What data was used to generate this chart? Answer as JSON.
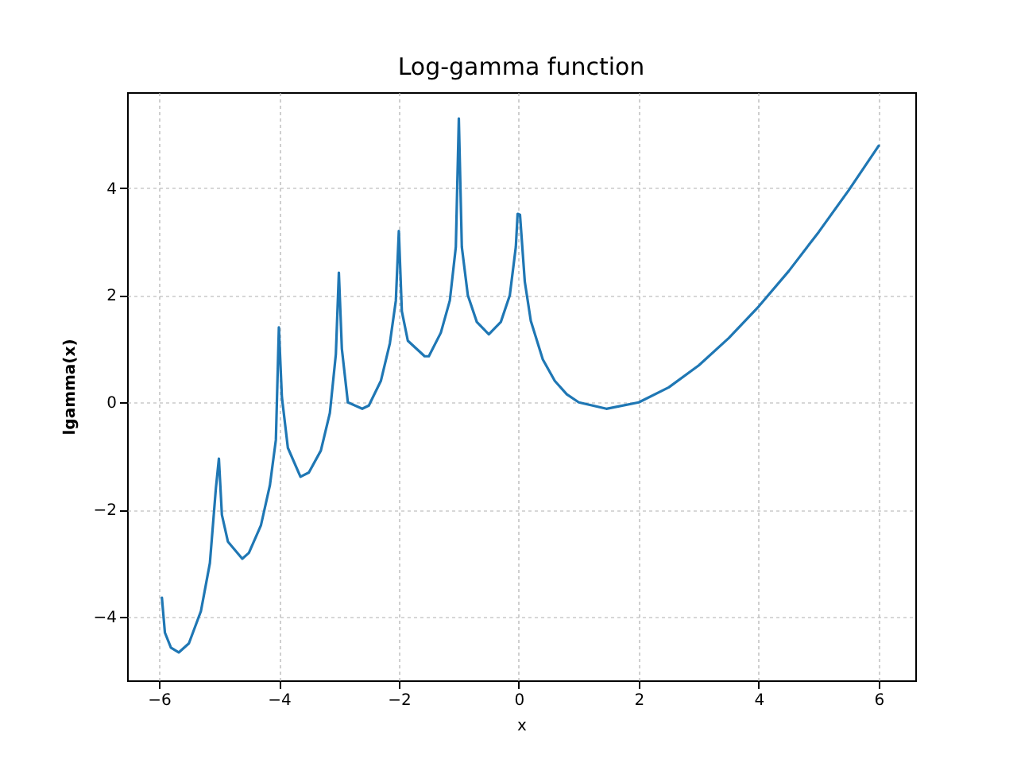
{
  "chart_data": {
    "type": "line",
    "title": "Log-gamma function",
    "xlabel": "x",
    "ylabel": "lgamma(x)",
    "xlim": [
      -6.53,
      6.61
    ],
    "ylim": [
      -5.19,
      5.79
    ],
    "xticks": [
      -6,
      -4,
      -2,
      0,
      2,
      4,
      6
    ],
    "yticks": [
      -4,
      -2,
      0,
      2,
      4
    ],
    "grid": true,
    "line_style": "solid",
    "marker": "none",
    "series": [
      {
        "color": "#1f77b4",
        "x": [
          -5.95,
          -5.9,
          -5.8,
          -5.67,
          -5.5,
          -5.3,
          -5.15,
          -5.05,
          -5.0,
          -4.95,
          -4.85,
          -4.61,
          -4.5,
          -4.3,
          -4.15,
          -4.05,
          -4.0,
          -3.95,
          -3.85,
          -3.64,
          -3.5,
          -3.3,
          -3.15,
          -3.05,
          -3.0,
          -2.95,
          -2.85,
          -2.61,
          -2.5,
          -2.3,
          -2.15,
          -2.05,
          -2.0,
          -1.95,
          -1.85,
          -1.57,
          -1.5,
          -1.3,
          -1.15,
          -1.05,
          -1.0,
          -0.95,
          -0.85,
          -0.7,
          -0.5,
          -0.3,
          -0.15,
          -0.05,
          -0.02,
          0.02,
          0.1,
          0.2,
          0.4,
          0.6,
          0.8,
          1.0,
          1.46,
          2.0,
          2.5,
          3.0,
          3.5,
          4.0,
          4.5,
          5.0,
          5.5,
          6.0
        ],
        "values": [
          -3.65,
          -4.3,
          -4.58,
          -4.67,
          -4.5,
          -3.9,
          -3.0,
          -1.6,
          -1.05,
          -2.1,
          -2.6,
          -2.92,
          -2.81,
          -2.3,
          -1.55,
          -0.7,
          1.4,
          0.1,
          -0.85,
          -1.39,
          -1.31,
          -0.9,
          -0.2,
          0.9,
          2.42,
          1.0,
          0.0,
          -0.12,
          -0.06,
          0.4,
          1.1,
          1.9,
          3.2,
          1.7,
          1.15,
          0.86,
          0.86,
          1.3,
          1.9,
          2.9,
          5.3,
          2.9,
          2.0,
          1.5,
          1.27,
          1.5,
          2.0,
          2.9,
          3.52,
          3.5,
          2.25,
          1.52,
          0.8,
          0.4,
          0.15,
          0.0,
          -0.12,
          0.0,
          0.28,
          0.69,
          1.2,
          1.79,
          2.45,
          3.18,
          3.96,
          4.79
        ]
      }
    ]
  }
}
